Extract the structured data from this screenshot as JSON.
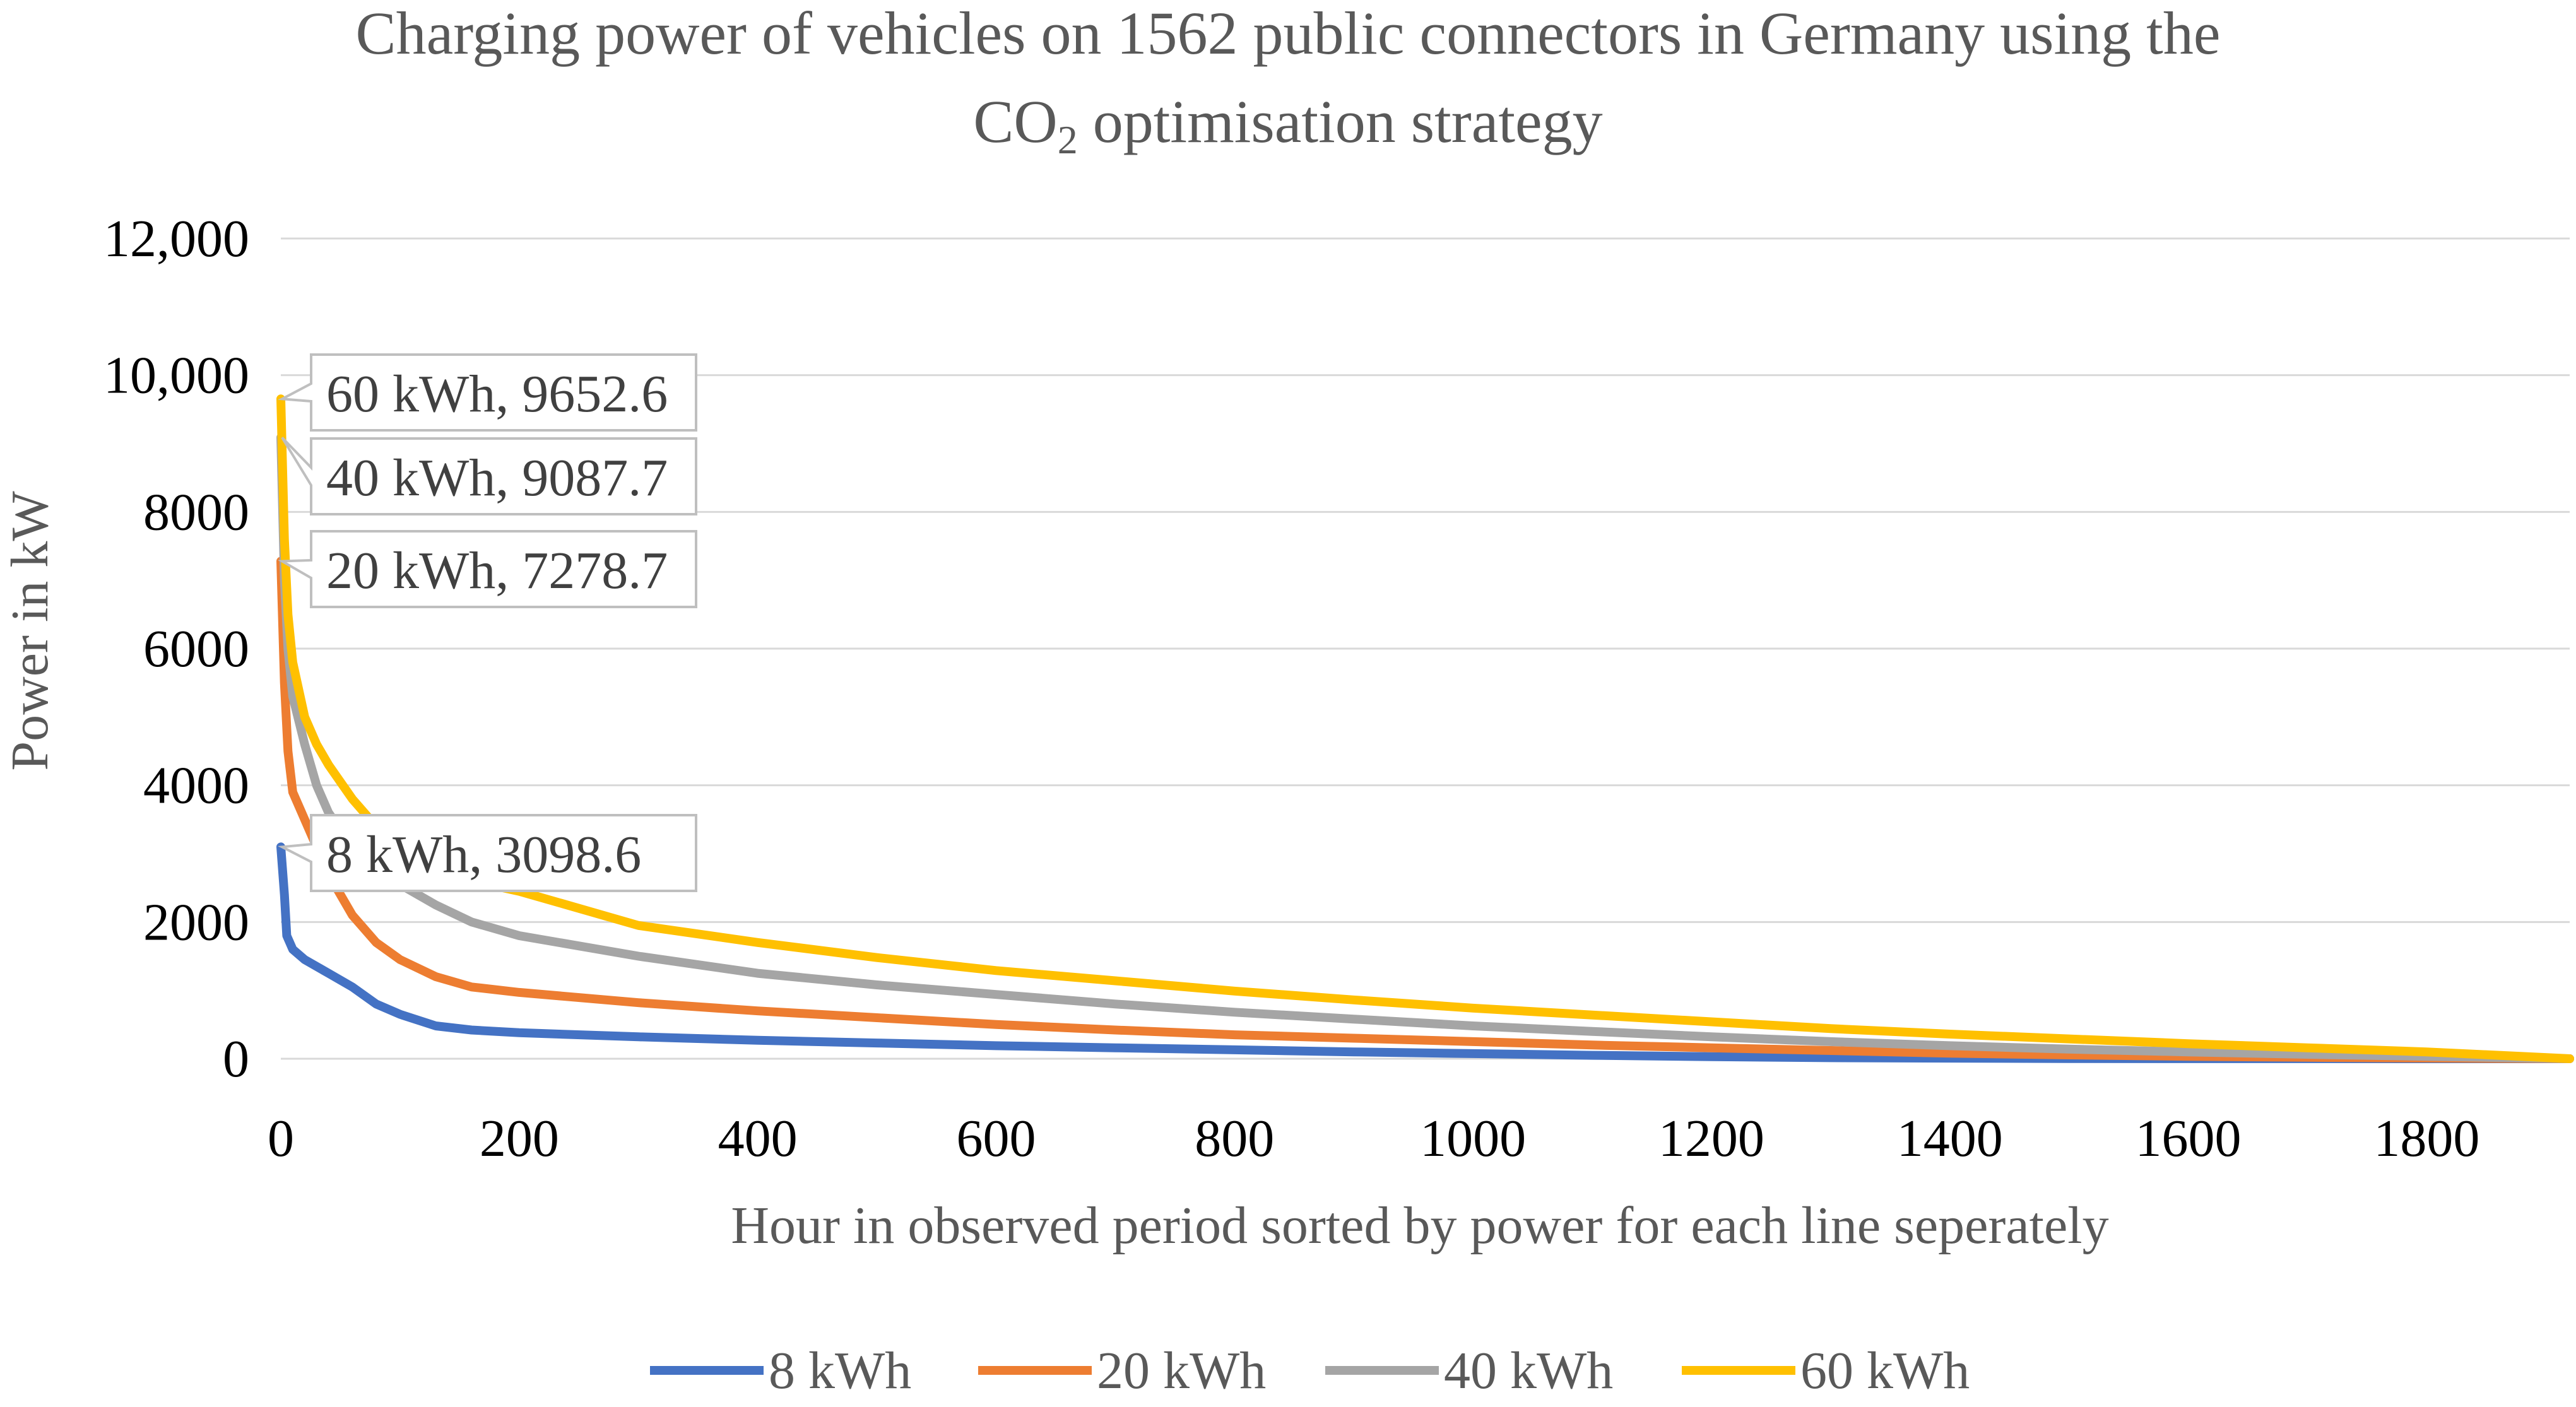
{
  "chart_data": {
    "type": "line",
    "title_main": "Charging power of vehicles on 1562 public connectors in Germany using the",
    "title_line2_prefix": "CO",
    "title_line2_sub": "2",
    "title_line2_suffix": " optimisation strategy",
    "xlabel": "Hour in observed period sorted by power for each line seperately",
    "ylabel": "Power in kW",
    "xlim": [
      0,
      1920
    ],
    "ylim": [
      0,
      12000
    ],
    "x_ticks": [
      0,
      200,
      400,
      600,
      800,
      1000,
      1200,
      1400,
      1600,
      1800
    ],
    "x_tick_labels": [
      "0",
      "200",
      "400",
      "600",
      "800",
      "1000",
      "1200",
      "1400",
      "1600",
      "1800"
    ],
    "y_ticks": [
      0,
      2000,
      4000,
      6000,
      8000,
      10000,
      12000
    ],
    "y_tick_labels": [
      "0",
      "2000",
      "4000",
      "6000",
      "8000",
      "10,000",
      "12,000"
    ],
    "grid": true,
    "legend_position": "bottom",
    "series": [
      {
        "name": "8 kWh",
        "color": "#4472C4",
        "callout": "8 kWh, 3098.6",
        "peak": 3098.6,
        "points": [
          [
            0,
            3098.6
          ],
          [
            3,
            2400
          ],
          [
            5,
            1800
          ],
          [
            10,
            1600
          ],
          [
            20,
            1450
          ],
          [
            40,
            1250
          ],
          [
            60,
            1050
          ],
          [
            80,
            800
          ],
          [
            100,
            650
          ],
          [
            130,
            480
          ],
          [
            160,
            420
          ],
          [
            200,
            380
          ],
          [
            300,
            320
          ],
          [
            400,
            270
          ],
          [
            500,
            230
          ],
          [
            600,
            190
          ],
          [
            700,
            160
          ],
          [
            800,
            130
          ],
          [
            900,
            100
          ],
          [
            1000,
            75
          ],
          [
            1100,
            50
          ],
          [
            1200,
            30
          ],
          [
            1300,
            15
          ],
          [
            1400,
            8
          ],
          [
            1500,
            3
          ],
          [
            1600,
            1
          ],
          [
            1920,
            0
          ]
        ]
      },
      {
        "name": "20 kWh",
        "color": "#ED7D31",
        "callout": "20 kWh, 7278.7",
        "peak": 7278.7,
        "points": [
          [
            0,
            7278.7
          ],
          [
            3,
            5500
          ],
          [
            6,
            4500
          ],
          [
            10,
            3900
          ],
          [
            20,
            3500
          ],
          [
            30,
            3100
          ],
          [
            40,
            2700
          ],
          [
            60,
            2100
          ],
          [
            80,
            1700
          ],
          [
            100,
            1450
          ],
          [
            130,
            1200
          ],
          [
            160,
            1050
          ],
          [
            200,
            970
          ],
          [
            300,
            820
          ],
          [
            400,
            700
          ],
          [
            500,
            600
          ],
          [
            600,
            500
          ],
          [
            700,
            420
          ],
          [
            800,
            350
          ],
          [
            900,
            300
          ],
          [
            1000,
            250
          ],
          [
            1100,
            200
          ],
          [
            1200,
            160
          ],
          [
            1300,
            120
          ],
          [
            1400,
            80
          ],
          [
            1500,
            55
          ],
          [
            1600,
            35
          ],
          [
            1700,
            20
          ],
          [
            1800,
            10
          ],
          [
            1920,
            0
          ]
        ]
      },
      {
        "name": "40 kWh",
        "color": "#A5A5A5",
        "callout": "40 kWh, 9087.7",
        "peak": 9087.7,
        "points": [
          [
            0,
            9087.7
          ],
          [
            3,
            7000
          ],
          [
            6,
            6000
          ],
          [
            10,
            5300
          ],
          [
            20,
            4600
          ],
          [
            30,
            4000
          ],
          [
            40,
            3600
          ],
          [
            60,
            3100
          ],
          [
            80,
            2800
          ],
          [
            100,
            2550
          ],
          [
            130,
            2250
          ],
          [
            160,
            2000
          ],
          [
            200,
            1800
          ],
          [
            300,
            1500
          ],
          [
            400,
            1250
          ],
          [
            500,
            1080
          ],
          [
            600,
            940
          ],
          [
            700,
            800
          ],
          [
            800,
            680
          ],
          [
            900,
            580
          ],
          [
            1000,
            480
          ],
          [
            1100,
            400
          ],
          [
            1200,
            320
          ],
          [
            1300,
            250
          ],
          [
            1400,
            190
          ],
          [
            1500,
            140
          ],
          [
            1600,
            100
          ],
          [
            1700,
            65
          ],
          [
            1800,
            35
          ],
          [
            1920,
            0
          ]
        ]
      },
      {
        "name": "60 kWh",
        "color": "#FFC000",
        "callout": "60 kWh, 9652.6",
        "peak": 9652.6,
        "points": [
          [
            0,
            9652.6
          ],
          [
            3,
            7600
          ],
          [
            6,
            6500
          ],
          [
            10,
            5800
          ],
          [
            20,
            5000
          ],
          [
            30,
            4600
          ],
          [
            40,
            4300
          ],
          [
            60,
            3800
          ],
          [
            80,
            3400
          ],
          [
            100,
            3100
          ],
          [
            130,
            2800
          ],
          [
            160,
            2600
          ],
          [
            200,
            2450
          ],
          [
            300,
            1950
          ],
          [
            400,
            1700
          ],
          [
            500,
            1480
          ],
          [
            600,
            1290
          ],
          [
            700,
            1140
          ],
          [
            800,
            990
          ],
          [
            900,
            860
          ],
          [
            1000,
            740
          ],
          [
            1100,
            640
          ],
          [
            1200,
            540
          ],
          [
            1300,
            440
          ],
          [
            1400,
            360
          ],
          [
            1500,
            290
          ],
          [
            1600,
            220
          ],
          [
            1700,
            160
          ],
          [
            1800,
            100
          ],
          [
            1920,
            0
          ]
        ]
      }
    ]
  }
}
